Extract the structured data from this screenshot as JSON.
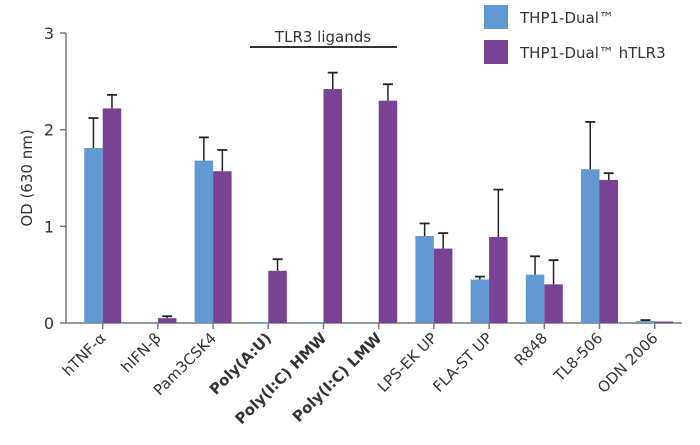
{
  "chart_data": {
    "type": "bar",
    "ylabel": "OD (630 nm)",
    "ylim": [
      0,
      3
    ],
    "yticks": [
      "0",
      "1",
      "2",
      "3"
    ],
    "grid": false,
    "legend_position": "top-right",
    "annotation": {
      "text": "TLR3 ligands",
      "spans": [
        "Poly(A:U)",
        "Poly(I:C) LMW"
      ]
    },
    "categories": [
      "hTNF-α",
      "hIFN-β",
      "Pam3CSK4",
      "Poly(A:U)",
      "Poly(I:C) HMW",
      "Poly(I:C) LMW",
      "LPS-EK UP",
      "FLA-ST UP",
      "R848",
      "TL8-506",
      "ODN 2006"
    ],
    "bold_categories": [
      "Poly(A:U)",
      "Poly(I:C) HMW",
      "Poly(I:C) LMW"
    ],
    "series": [
      {
        "name": "THP1-Dual™",
        "color": "#6399d2",
        "values": [
          1.81,
          0,
          1.68,
          0.01,
          0.01,
          0,
          0.9,
          0.45,
          0.5,
          1.59,
          0.02
        ],
        "error": [
          0.31,
          0,
          0.24,
          0,
          0,
          0,
          0.13,
          0.03,
          0.19,
          0.49,
          0.01
        ]
      },
      {
        "name": "THP1-Dual™ hTLR3",
        "color": "#7a4292",
        "values": [
          2.22,
          0.05,
          1.57,
          0.54,
          2.42,
          2.3,
          0.77,
          0.89,
          0.4,
          1.48,
          0.015
        ],
        "error": [
          0.14,
          0.02,
          0.22,
          0.12,
          0.17,
          0.17,
          0.16,
          0.49,
          0.25,
          0.07,
          0
        ]
      }
    ]
  }
}
